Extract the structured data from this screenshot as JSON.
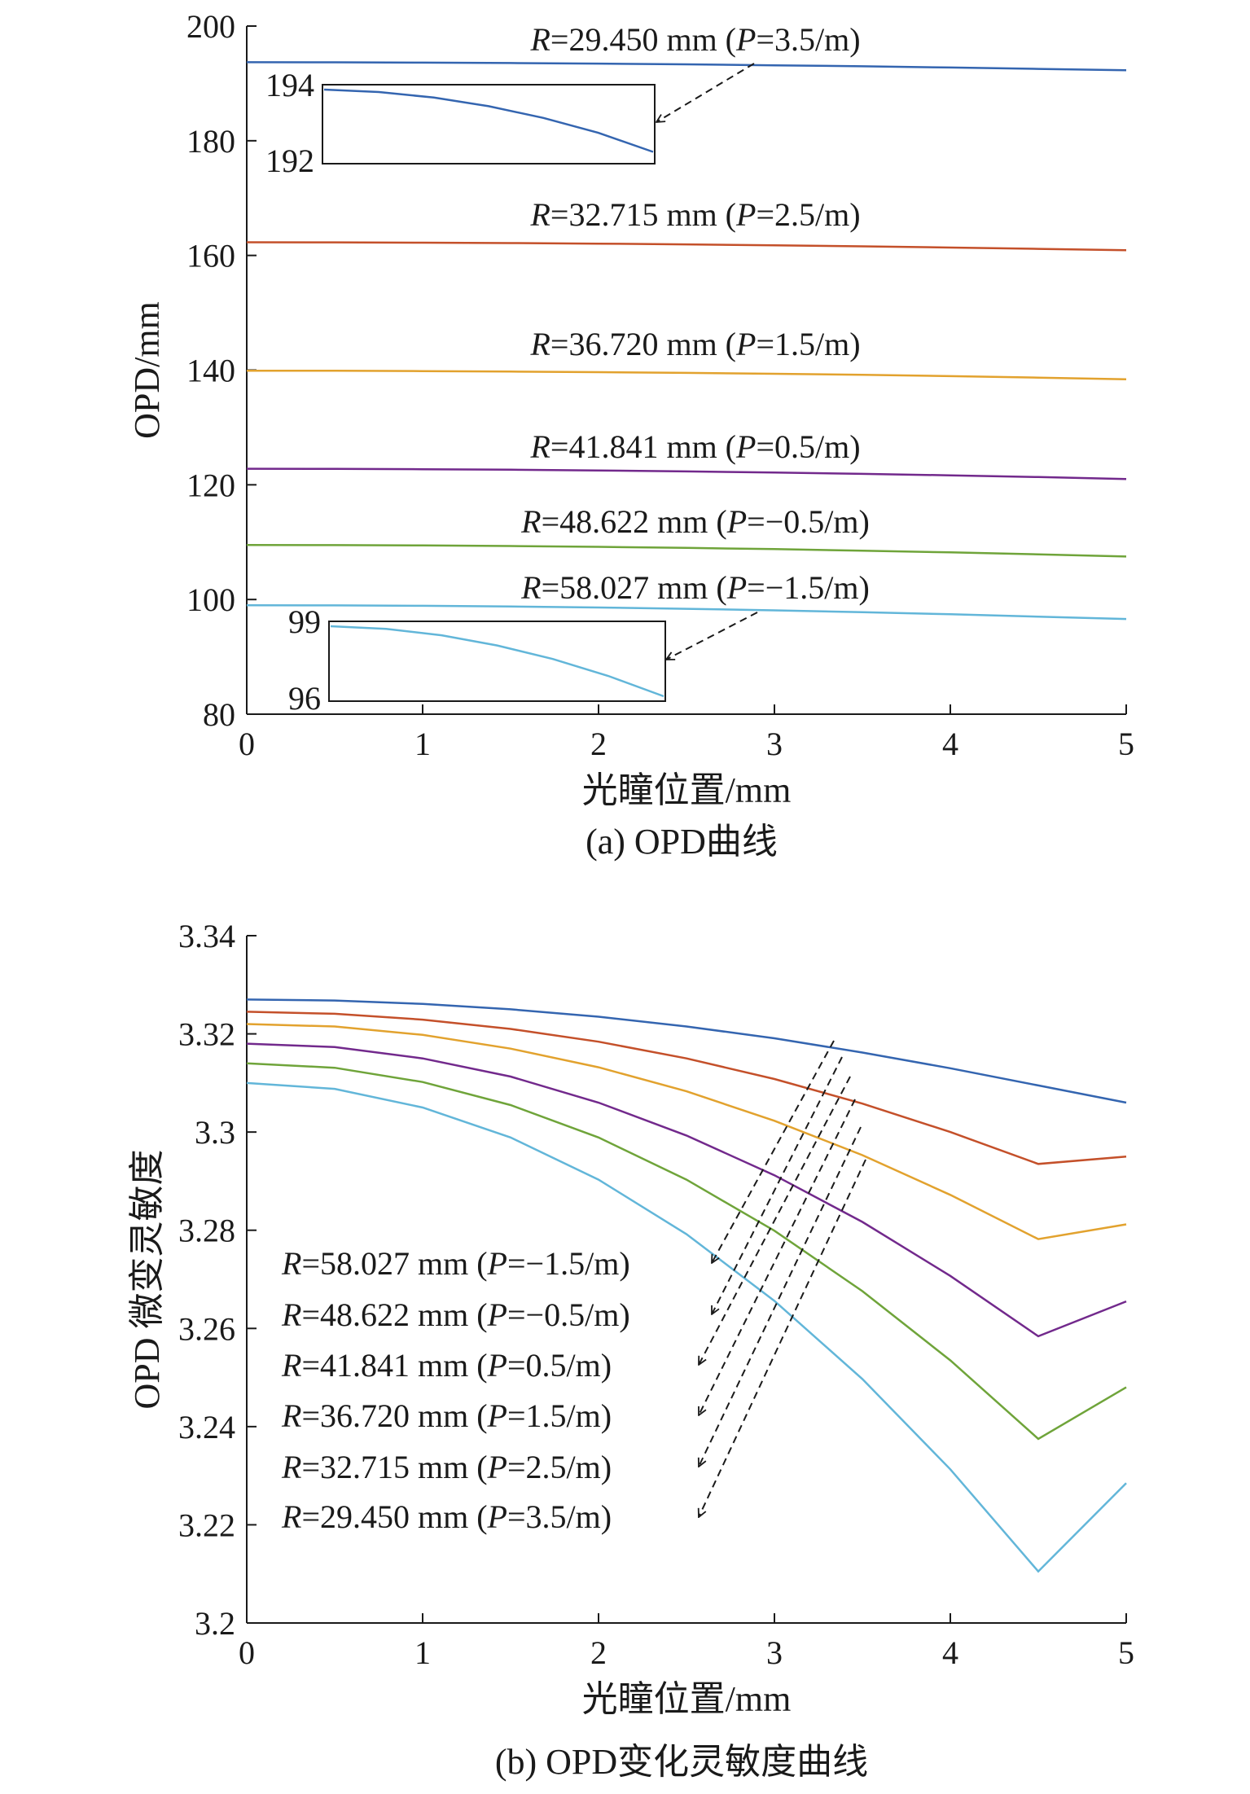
{
  "figure": {
    "caption_a": "(a) OPD曲线",
    "caption_b": "(b) OPD变化灵敏度曲线"
  },
  "colors": {
    "P=3.5": "#3465b0",
    "P=2.5": "#c4502a",
    "P=1.5": "#e2a22e",
    "P=0.5": "#72298c",
    "P=-0.5": "#6fa43a",
    "P=-1.5": "#62b6d9",
    "axis": "#1a1a1a"
  },
  "chart_data": [
    {
      "type": "line",
      "id": "a",
      "xlabel": "光瞳位置/mm",
      "ylabel": "OPD/mm",
      "xlim": [
        0,
        5
      ],
      "ylim": [
        80,
        200
      ],
      "xticks": [
        "0",
        "1",
        "2",
        "3",
        "4",
        "5"
      ],
      "yticks": [
        "80",
        "100",
        "120",
        "140",
        "160",
        "180",
        "200"
      ],
      "grid": false,
      "x": [
        0,
        0.5,
        1,
        1.5,
        2,
        2.5,
        3,
        3.5,
        4,
        4.5,
        5
      ],
      "series": [
        {
          "name": "R=29.450 mm (P=3.5/m)",
          "color_key": "P=3.5",
          "label_parts": [
            "R",
            "=29.450 mm (",
            "P",
            "=3.5/m)"
          ],
          "values": [
            193.7,
            193.68,
            193.63,
            193.55,
            193.45,
            193.32,
            193.16,
            192.98,
            192.77,
            192.53,
            192.3
          ]
        },
        {
          "name": "R=32.715 mm (P=2.5/m)",
          "color_key": "P=2.5",
          "label_parts": [
            "R",
            "=32.715 mm (",
            "P",
            "=2.5/m)"
          ],
          "values": [
            162.3,
            162.28,
            162.23,
            162.15,
            162.05,
            161.92,
            161.76,
            161.58,
            161.37,
            161.14,
            160.9
          ]
        },
        {
          "name": "R=36.720 mm (P=1.5/m)",
          "color_key": "P=1.5",
          "label_parts": [
            "R",
            "=36.720 mm (",
            "P",
            "=1.5/m)"
          ],
          "values": [
            139.9,
            139.88,
            139.83,
            139.75,
            139.65,
            139.52,
            139.36,
            139.17,
            138.95,
            138.7,
            138.4
          ]
        },
        {
          "name": "R=41.841 mm (P=0.5/m)",
          "color_key": "P=0.5",
          "label_parts": [
            "R",
            "=41.841 mm (",
            "P",
            "=0.5/m)"
          ],
          "values": [
            122.8,
            122.78,
            122.72,
            122.63,
            122.5,
            122.34,
            122.14,
            121.91,
            121.65,
            121.35,
            121.0
          ]
        },
        {
          "name": "R=48.622 mm (P=-0.5/m)",
          "color_key": "P=-0.5",
          "label_parts": [
            "R",
            "=48.622 mm (",
            "P",
            "=−0.5/m)"
          ],
          "values": [
            109.5,
            109.48,
            109.42,
            109.32,
            109.18,
            109.0,
            108.78,
            108.52,
            108.22,
            107.88,
            107.5
          ]
        },
        {
          "name": "R=58.027 mm (P=-1.5/m)",
          "color_key": "P=-1.5",
          "label_parts": [
            "R",
            "=58.027 mm (",
            "P",
            "=−1.5/m)"
          ],
          "values": [
            99.0,
            98.97,
            98.9,
            98.77,
            98.6,
            98.38,
            98.11,
            97.79,
            97.43,
            97.01,
            96.6
          ]
        }
      ],
      "insets": [
        {
          "series_index": 0,
          "ytick_top": "194",
          "ytick_bottom": "192",
          "values": [
            194,
            193.93,
            193.77,
            193.52,
            193.18,
            192.75,
            192.2
          ]
        },
        {
          "series_index": 5,
          "ytick_top": "99",
          "ytick_bottom": "96",
          "values": [
            99,
            98.88,
            98.6,
            98.15,
            97.55,
            96.8,
            95.9
          ]
        }
      ]
    },
    {
      "type": "line",
      "id": "b",
      "xlabel": "光瞳位置/mm",
      "ylabel": "OPD 微变灵敏度",
      "xlim": [
        0,
        5
      ],
      "ylim": [
        3.2,
        3.34
      ],
      "xticks": [
        "0",
        "1",
        "2",
        "3",
        "4",
        "5"
      ],
      "yticks": [
        "3.2",
        "3.22",
        "3.24",
        "3.26",
        "3.28",
        "3.3",
        "3.32",
        "3.34"
      ],
      "grid": false,
      "x": [
        0,
        0.5,
        1,
        1.5,
        2,
        2.5,
        3,
        3.5,
        4,
        4.5,
        5
      ],
      "series": [
        {
          "name": "R=29.450 mm (P=3.5/m)",
          "color_key": "P=3.5",
          "label_parts": [
            "R",
            "=29.450 mm (",
            "P",
            "=3.5/m)"
          ],
          "values": [
            3.327,
            3.3268,
            3.3261,
            3.325,
            3.3235,
            3.3215,
            3.3191,
            3.3162,
            3.313,
            3.3095,
            3.306
          ]
        },
        {
          "name": "R=32.715 mm (P=2.5/m)",
          "color_key": "P=2.5",
          "label_parts": [
            "R",
            "=32.715 mm (",
            "P",
            "=2.5/m)"
          ],
          "values": [
            3.3245,
            3.3241,
            3.3229,
            3.321,
            3.3184,
            3.315,
            3.3108,
            3.3058,
            3.3,
            3.2935,
            3.295
          ]
        },
        {
          "name": "R=36.720 mm (P=1.5/m)",
          "color_key": "P=1.5",
          "label_parts": [
            "R",
            "=36.720 mm (",
            "P",
            "=1.5/m)"
          ],
          "values": [
            3.322,
            3.3215,
            3.3198,
            3.317,
            3.3132,
            3.3083,
            3.3023,
            3.2953,
            3.2872,
            3.2782,
            3.2812
          ]
        },
        {
          "name": "R=41.841 mm (P=0.5/m)",
          "color_key": "P=0.5",
          "label_parts": [
            "R",
            "=41.841 mm (",
            "P",
            "=0.5/m)"
          ],
          "values": [
            3.318,
            3.3173,
            3.315,
            3.3113,
            3.306,
            3.2993,
            3.2912,
            3.2817,
            3.2707,
            3.2584,
            3.2655
          ]
        },
        {
          "name": "R=48.622 mm (P=-0.5/m)",
          "color_key": "P=-0.5",
          "label_parts": [
            "R",
            "=48.622 mm (",
            "P",
            "=−0.5/m)"
          ],
          "values": [
            3.314,
            3.3131,
            3.3102,
            3.3055,
            3.2989,
            3.2903,
            3.2799,
            3.2676,
            3.2535,
            3.2375,
            3.248
          ]
        },
        {
          "name": "R=58.027 mm (P=-1.5/m)",
          "color_key": "P=-1.5",
          "label_parts": [
            "R",
            "=58.027 mm (",
            "P",
            "=−1.5/m)"
          ],
          "values": [
            3.31,
            3.3088,
            3.305,
            3.2989,
            3.2903,
            3.2792,
            3.2656,
            3.2497,
            3.2313,
            3.2105,
            3.2285
          ]
        }
      ]
    }
  ]
}
